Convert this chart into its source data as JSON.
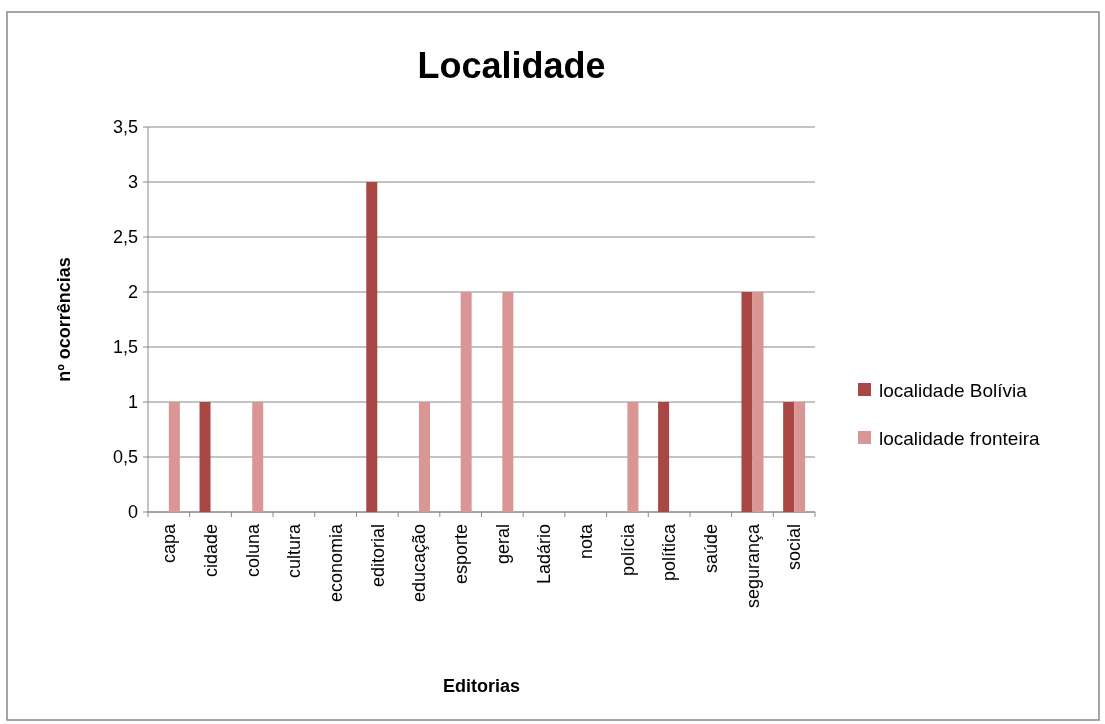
{
  "chart_data": {
    "type": "bar",
    "title": "Localidade",
    "xlabel": "Editorias",
    "ylabel": "nº ocorrências",
    "categories": [
      "capa",
      "cidade",
      "coluna",
      "cultura",
      "economia",
      "editorial",
      "educação",
      "esporte",
      "geral",
      "Ladário",
      "nota",
      "polícia",
      "política",
      "saúde",
      "segurança",
      "social"
    ],
    "series": [
      {
        "name": "localidade Bolívia",
        "color": "#a84744",
        "values": [
          0,
          1,
          0,
          0,
          0,
          3,
          0,
          0,
          0,
          0,
          0,
          0,
          1,
          0,
          2,
          1
        ]
      },
      {
        "name": "localidade fronteira",
        "color": "#d99694",
        "values": [
          1,
          0,
          1,
          0,
          0,
          0,
          1,
          2,
          2,
          0,
          0,
          1,
          0,
          0,
          2,
          1
        ]
      }
    ],
    "ylim": [
      0,
      3.5
    ],
    "yticks": [
      0,
      {
        "value": 0.5,
        "label": "0,5"
      },
      1,
      {
        "value": 1.5,
        "label": "1,5"
      },
      2,
      {
        "value": 2.5,
        "label": "2,5"
      },
      3,
      {
        "value": 3.5,
        "label": "3,5"
      }
    ],
    "grid": "y",
    "legend": "right"
  }
}
